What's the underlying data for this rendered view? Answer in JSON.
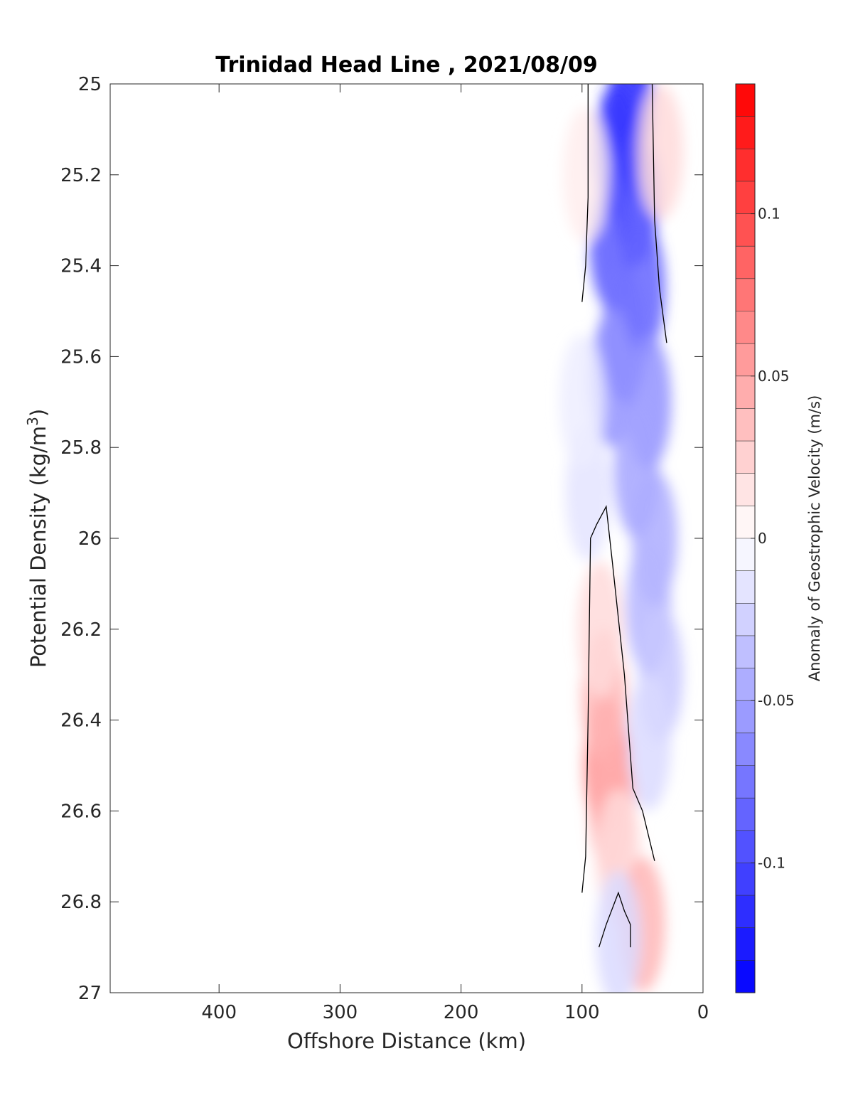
{
  "chart_data": {
    "type": "heatmap",
    "title": "Trinidad Head Line , 2021/08/09",
    "xlabel": "Offshore Distance (km)",
    "ylabel": "Potential Density (kg/m",
    "ylabel_superscript": "3",
    "ylabel_close": ")",
    "xlim": [
      490,
      0
    ],
    "ylim": [
      25,
      27
    ],
    "x_reversed": true,
    "y_reversed": true,
    "xticks": [
      400,
      300,
      200,
      100,
      0
    ],
    "xtick_labels": [
      "400",
      "300",
      "200",
      "100",
      "0"
    ],
    "yticks": [
      25,
      25.2,
      25.4,
      25.6,
      25.8,
      26,
      26.2,
      26.4,
      26.6,
      26.8,
      27
    ],
    "ytick_labels": [
      "25",
      "25.2",
      "25.4",
      "25.6",
      "25.8",
      "26",
      "26.2",
      "26.4",
      "26.6",
      "26.8",
      "27"
    ],
    "colorbar": {
      "label": "Anomaly of Geostrophic Velocity (m/s)",
      "range": [
        -0.14,
        0.14
      ],
      "levels": 28,
      "ticks": [
        0.1,
        0.05,
        0,
        -0.05,
        -0.1
      ],
      "tick_labels": [
        "0.1",
        "0.05",
        "0",
        "-0.05",
        "-0.1"
      ],
      "max_color": "#ff0000",
      "zero_color": "#ffffff",
      "min_color": "#0000ff"
    },
    "grid": false,
    "zero_contours": [
      {
        "x": [
          100,
          97,
          95,
          95
        ],
        "y": [
          25.48,
          25.4,
          25.25,
          25.0
        ]
      },
      {
        "x": [
          42,
          40,
          36,
          30
        ],
        "y": [
          25.0,
          25.3,
          25.45,
          25.57
        ]
      },
      {
        "x": [
          100,
          97,
          95,
          93,
          88,
          80,
          75,
          65,
          58,
          50,
          40
        ],
        "y": [
          26.78,
          26.7,
          26.4,
          26.0,
          25.97,
          25.93,
          26.05,
          26.3,
          26.55,
          26.6,
          26.71
        ]
      },
      {
        "x": [
          86,
          80,
          70,
          65,
          60,
          60
        ],
        "y": [
          26.9,
          26.85,
          26.78,
          26.82,
          26.85,
          26.9
        ]
      }
    ],
    "field_cells": [
      {
        "x": 60,
        "y": 25.05,
        "v": -0.12
      },
      {
        "x": 72,
        "y": 25.15,
        "v": -0.11
      },
      {
        "x": 55,
        "y": 25.25,
        "v": -0.1
      },
      {
        "x": 75,
        "y": 25.35,
        "v": -0.09
      },
      {
        "x": 50,
        "y": 25.45,
        "v": -0.085
      },
      {
        "x": 65,
        "y": 25.55,
        "v": -0.075
      },
      {
        "x": 75,
        "y": 25.65,
        "v": -0.06
      },
      {
        "x": 45,
        "y": 25.7,
        "v": -0.06
      },
      {
        "x": 55,
        "y": 25.85,
        "v": -0.05
      },
      {
        "x": 40,
        "y": 26.0,
        "v": -0.045
      },
      {
        "x": 45,
        "y": 26.15,
        "v": -0.04
      },
      {
        "x": 35,
        "y": 26.3,
        "v": -0.03
      },
      {
        "x": 45,
        "y": 26.45,
        "v": -0.02
      },
      {
        "x": 95,
        "y": 25.9,
        "v": -0.015
      },
      {
        "x": 100,
        "y": 25.7,
        "v": -0.01
      },
      {
        "x": 80,
        "y": 26.5,
        "v": 0.06
      },
      {
        "x": 82,
        "y": 26.35,
        "v": 0.04
      },
      {
        "x": 75,
        "y": 26.6,
        "v": 0.045
      },
      {
        "x": 85,
        "y": 26.2,
        "v": 0.02
      },
      {
        "x": 70,
        "y": 26.7,
        "v": 0.02
      },
      {
        "x": 50,
        "y": 26.85,
        "v": 0.04
      },
      {
        "x": 35,
        "y": 25.15,
        "v": 0.02
      },
      {
        "x": 97,
        "y": 25.2,
        "v": 0.01
      },
      {
        "x": 70,
        "y": 26.88,
        "v": -0.02
      }
    ]
  }
}
